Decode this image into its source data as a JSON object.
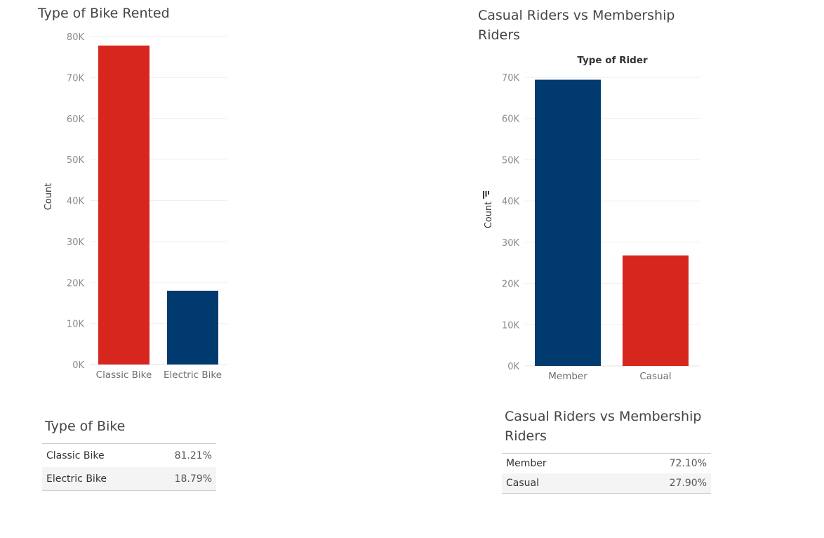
{
  "chart_data": [
    {
      "type": "bar",
      "title": "Type of Bike Rented",
      "ylabel": "Count",
      "xlabel": "",
      "categories": [
        "Classic Bike",
        "Electric Bike"
      ],
      "values": [
        77800,
        18000
      ],
      "colors": [
        "#d7261e",
        "#013a6f"
      ],
      "ylim": [
        0,
        80000
      ],
      "yticks": [
        0,
        10000,
        20000,
        30000,
        40000,
        50000,
        60000,
        70000,
        80000
      ],
      "ytick_labels": [
        "0K",
        "10K",
        "20K",
        "30K",
        "40K",
        "50K",
        "60K",
        "70K",
        "80K"
      ],
      "grid": true
    },
    {
      "type": "bar",
      "title": "Casual Riders vs Membership Riders",
      "column_header": "Type of Rider",
      "ylabel": "Count",
      "xlabel": "",
      "categories": [
        "Member",
        "Casual"
      ],
      "values": [
        69400,
        26800
      ],
      "colors": [
        "#013a6f",
        "#d7261e"
      ],
      "ylim": [
        0,
        70000
      ],
      "yticks": [
        0,
        10000,
        20000,
        30000,
        40000,
        50000,
        60000,
        70000
      ],
      "ytick_labels": [
        "0K",
        "10K",
        "20K",
        "30K",
        "40K",
        "50K",
        "60K",
        "70K"
      ],
      "grid": true,
      "sort_icon": "sort-descending-icon"
    }
  ],
  "tables": {
    "bike": {
      "title": "Type of Bike",
      "rows": [
        {
          "label": "Classic Bike",
          "value": "81.21%"
        },
        {
          "label": "Electric Bike",
          "value": "18.79%"
        }
      ]
    },
    "rider": {
      "title": "Casual Riders vs Membership Riders",
      "rows": [
        {
          "label": "Member",
          "value": "72.10%"
        },
        {
          "label": "Casual",
          "value": "27.90%"
        }
      ]
    }
  }
}
